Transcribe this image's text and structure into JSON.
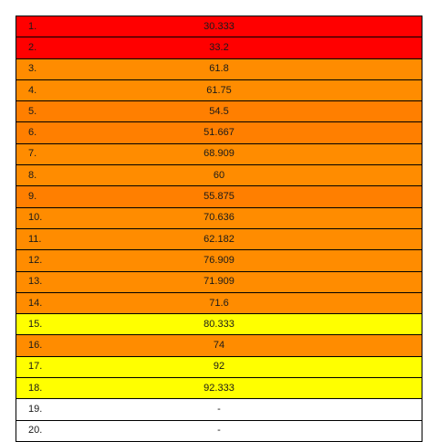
{
  "colors": {
    "red": "#ff0000",
    "dark_orange": "#ff7f00",
    "orange": "#ff8c00",
    "yellow": "#ffff00",
    "white": "#ffffff"
  },
  "rows": [
    {
      "rank": "1.",
      "value": "30.333",
      "color": "#ff0000"
    },
    {
      "rank": "2.",
      "value": "33.2",
      "color": "#ff0000"
    },
    {
      "rank": "3.",
      "value": "61.8",
      "color": "#ff8c00"
    },
    {
      "rank": "4.",
      "value": "61.75",
      "color": "#ff8c00"
    },
    {
      "rank": "5.",
      "value": "54.5",
      "color": "#ff7f00"
    },
    {
      "rank": "6.",
      "value": "51.667",
      "color": "#ff7f00"
    },
    {
      "rank": "7.",
      "value": "68.909",
      "color": "#ff8c00"
    },
    {
      "rank": "8.",
      "value": "60",
      "color": "#ff8c00"
    },
    {
      "rank": "9.",
      "value": "55.875",
      "color": "#ff7f00"
    },
    {
      "rank": "10.",
      "value": "70.636",
      "color": "#ff8c00"
    },
    {
      "rank": "11.",
      "value": "62.182",
      "color": "#ff8c00"
    },
    {
      "rank": "12.",
      "value": "76.909",
      "color": "#ff8c00"
    },
    {
      "rank": "13.",
      "value": "71.909",
      "color": "#ff8c00"
    },
    {
      "rank": "14.",
      "value": "71.6",
      "color": "#ff8c00"
    },
    {
      "rank": "15.",
      "value": "80.333",
      "color": "#ffff00"
    },
    {
      "rank": "16.",
      "value": "74",
      "color": "#ff8c00"
    },
    {
      "rank": "17.",
      "value": "92",
      "color": "#ffff00"
    },
    {
      "rank": "18.",
      "value": "92.333",
      "color": "#ffff00"
    },
    {
      "rank": "19.",
      "value": "-",
      "color": "#ffffff"
    },
    {
      "rank": "20.",
      "value": "-",
      "color": "#ffffff"
    }
  ]
}
